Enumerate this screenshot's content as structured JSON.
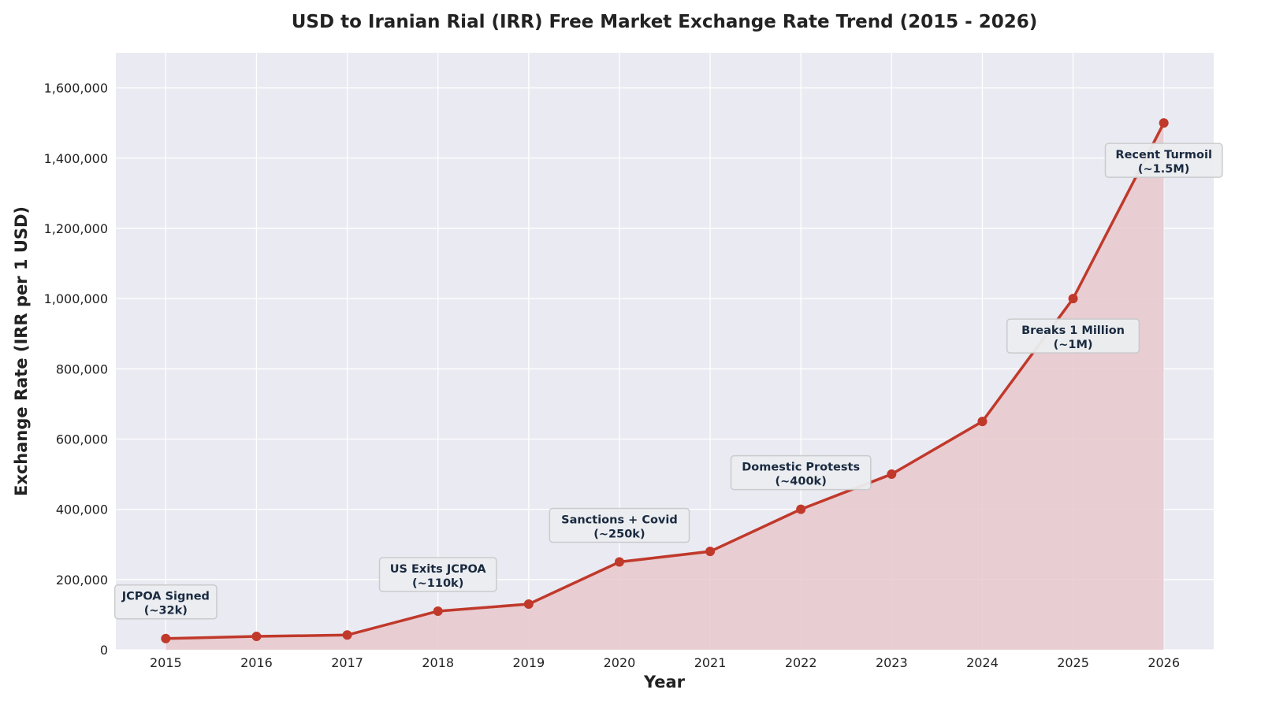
{
  "chart_data": {
    "type": "area",
    "title": "USD to Iranian Rial (IRR) Free Market Exchange Rate Trend (2015 - 2026)",
    "xlabel": "Year",
    "ylabel": "Exchange Rate (IRR per 1 USD)",
    "x": [
      2015,
      2016,
      2017,
      2018,
      2019,
      2020,
      2021,
      2022,
      2023,
      2024,
      2025,
      2026
    ],
    "values": [
      32000,
      38000,
      42000,
      110000,
      130000,
      250000,
      280000,
      400000,
      500000,
      650000,
      1000000,
      1500000
    ],
    "xlim": [
      2014.45,
      2026.55
    ],
    "ylim": [
      0,
      1700000
    ],
    "xticks": [
      "2015",
      "2016",
      "2017",
      "2018",
      "2019",
      "2020",
      "2021",
      "2022",
      "2023",
      "2024",
      "2025",
      "2026"
    ],
    "yticks": [
      0,
      200000,
      400000,
      600000,
      800000,
      1000000,
      1200000,
      1400000,
      1600000
    ],
    "ytick_labels": [
      "0",
      "200,000",
      "400,000",
      "600,000",
      "800,000",
      "1,000,000",
      "1,200,000",
      "1,400,000",
      "1,600,000"
    ],
    "grid": true,
    "colors": {
      "line": "#c0392b",
      "fill": "#e8c8cd",
      "background": "#eaeaf2",
      "annotation_text": "#1a2a40",
      "annotation_box": "#eceef0"
    },
    "annotations": [
      {
        "x": 2015,
        "y": 32000,
        "line1": "JCPOA Signed",
        "line2": "(~32k)",
        "position": "above"
      },
      {
        "x": 2018,
        "y": 110000,
        "line1": "US Exits JCPOA",
        "line2": "(~110k)",
        "position": "above"
      },
      {
        "x": 2020,
        "y": 250000,
        "line1": "Sanctions + Covid",
        "line2": "(~250k)",
        "position": "above"
      },
      {
        "x": 2022,
        "y": 400000,
        "line1": "Domestic Protests",
        "line2": "(~400k)",
        "position": "above"
      },
      {
        "x": 2025,
        "y": 1000000,
        "line1": "Breaks 1 Million",
        "line2": "(~1M)",
        "position": "below"
      },
      {
        "x": 2026,
        "y": 1500000,
        "line1": "Recent Turmoil",
        "line2": "(~1.5M)",
        "position": "below"
      }
    ]
  }
}
